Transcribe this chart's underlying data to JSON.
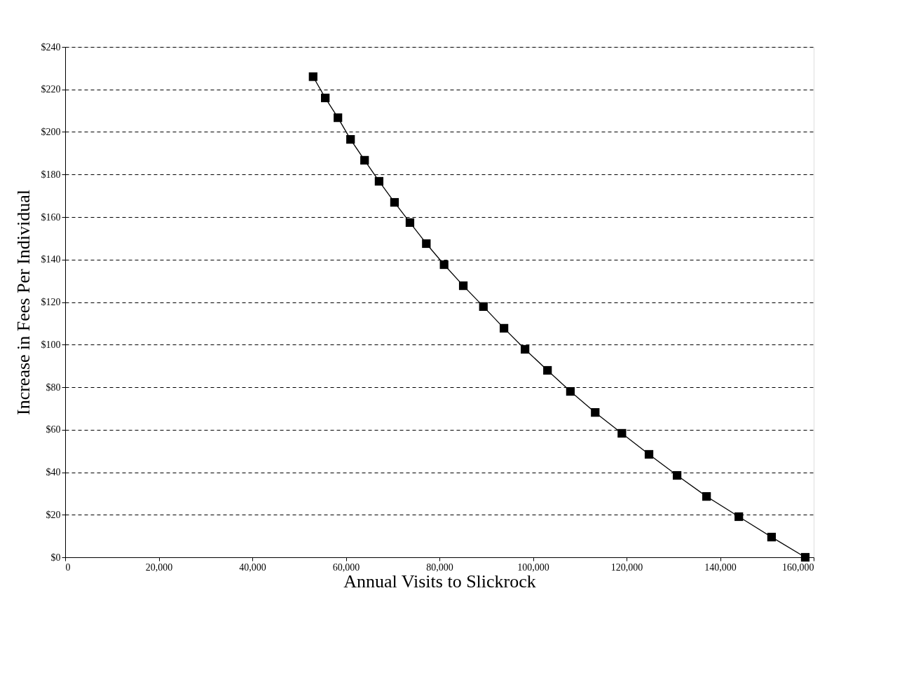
{
  "chart_data": {
    "type": "line",
    "xlabel": "Annual Visits to Slickrock",
    "ylabel": "Increase in Fees Per Individual",
    "x": [
      53000,
      55600,
      58300,
      61000,
      64000,
      67100,
      70400,
      73700,
      77200,
      81000,
      85100,
      89400,
      93800,
      98300,
      103100,
      108000,
      113300,
      119000,
      124800,
      130800,
      137100,
      144000,
      151000,
      158200
    ],
    "series": [
      {
        "color": "#000000",
        "values": [
          226,
          216,
          206.7,
          196.5,
          186.7,
          176.8,
          166.9,
          157.4,
          147.5,
          137.6,
          127.7,
          117.9,
          107.7,
          97.8,
          87.9,
          78,
          68.1,
          58.3,
          48.4,
          38.5,
          28.6,
          19.1,
          9.5,
          0
        ]
      }
    ],
    "xlim": [
      0,
      160000
    ],
    "xticks": [
      0,
      {
        "value": 20000,
        "label": "20,000"
      },
      {
        "value": 40000,
        "label": "40,000"
      },
      {
        "value": 60000,
        "label": "60,000"
      },
      {
        "value": 80000,
        "label": "80,000"
      },
      {
        "value": 100000,
        "label": "100,000"
      },
      {
        "value": 120000,
        "label": "120,000"
      },
      {
        "value": 140000,
        "label": "140,000"
      },
      {
        "value": 160000,
        "label": "160,000"
      }
    ],
    "ylim": [
      0,
      240
    ],
    "yticks": [
      {
        "value": 0,
        "label": "$0"
      },
      {
        "value": 20,
        "label": "$20"
      },
      {
        "value": 40,
        "label": "$40"
      },
      {
        "value": 60,
        "label": "$60"
      },
      {
        "value": 80,
        "label": "$80"
      },
      {
        "value": 100,
        "label": "$100"
      },
      {
        "value": 120,
        "label": "$120"
      },
      {
        "value": 140,
        "label": "$140"
      },
      {
        "value": 160,
        "label": "$160"
      },
      {
        "value": 180,
        "label": "$180"
      },
      {
        "value": 200,
        "label": "$200"
      },
      {
        "value": 220,
        "label": "$220"
      },
      {
        "value": 240,
        "label": "$240"
      }
    ],
    "grid": "y",
    "marker": "square",
    "line_style": "solid"
  }
}
